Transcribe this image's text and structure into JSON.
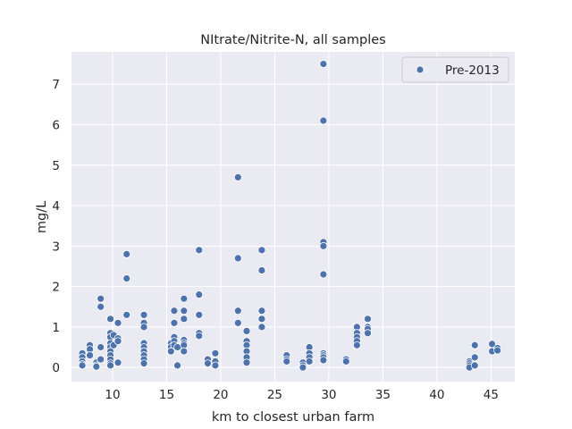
{
  "chart_data": {
    "type": "scatter",
    "title": "NItrate/Nitrite-N, all samples",
    "xlabel": "km to closest urban farm",
    "ylabel": "mg/L",
    "xlim": [
      6.2,
      47.2
    ],
    "ylim": [
      -0.35,
      7.8
    ],
    "xticks": [
      10,
      15,
      20,
      25,
      30,
      35,
      40,
      45
    ],
    "yticks": [
      0,
      1,
      2,
      3,
      4,
      5,
      6,
      7
    ],
    "grid": true,
    "legend_position": "top-right",
    "colors": {
      "background": "#eaeaf2",
      "grid": "#ffffff",
      "marker": "#4c72b0",
      "marker_edge": "#ffffff",
      "text": "#262626"
    },
    "series": [
      {
        "name": "Pre-2013",
        "points": [
          [
            7.2,
            0.35
          ],
          [
            7.2,
            0.25
          ],
          [
            7.2,
            0.15
          ],
          [
            7.2,
            0.08
          ],
          [
            7.2,
            0.05
          ],
          [
            7.9,
            0.55
          ],
          [
            7.9,
            0.45
          ],
          [
            7.9,
            0.3
          ],
          [
            8.5,
            0.12
          ],
          [
            8.5,
            0.05
          ],
          [
            8.5,
            0.02
          ],
          [
            8.9,
            1.7
          ],
          [
            8.9,
            1.5
          ],
          [
            8.9,
            0.5
          ],
          [
            8.9,
            0.2
          ],
          [
            9.8,
            1.2
          ],
          [
            9.8,
            0.85
          ],
          [
            9.8,
            0.75
          ],
          [
            9.8,
            0.6
          ],
          [
            9.8,
            0.5
          ],
          [
            9.8,
            0.4
          ],
          [
            9.8,
            0.3
          ],
          [
            9.8,
            0.2
          ],
          [
            9.8,
            0.1
          ],
          [
            9.8,
            0.05
          ],
          [
            10.1,
            0.8
          ],
          [
            10.1,
            0.55
          ],
          [
            10.5,
            1.1
          ],
          [
            10.5,
            0.72
          ],
          [
            10.5,
            0.65
          ],
          [
            10.5,
            0.12
          ],
          [
            11.3,
            2.8
          ],
          [
            11.3,
            2.2
          ],
          [
            11.3,
            1.3
          ],
          [
            12.9,
            1.3
          ],
          [
            12.9,
            1.1
          ],
          [
            12.9,
            1.0
          ],
          [
            12.9,
            0.6
          ],
          [
            12.9,
            0.5
          ],
          [
            12.9,
            0.4
          ],
          [
            12.9,
            0.3
          ],
          [
            12.9,
            0.2
          ],
          [
            12.9,
            0.1
          ],
          [
            15.4,
            0.6
          ],
          [
            15.4,
            0.5
          ],
          [
            15.4,
            0.4
          ],
          [
            15.7,
            1.4
          ],
          [
            15.7,
            1.1
          ],
          [
            15.7,
            0.75
          ],
          [
            15.7,
            0.65
          ],
          [
            15.7,
            0.55
          ],
          [
            16.0,
            0.5
          ],
          [
            16.0,
            0.05
          ],
          [
            16.6,
            1.7
          ],
          [
            16.6,
            1.4
          ],
          [
            16.6,
            1.2
          ],
          [
            16.6,
            0.68
          ],
          [
            16.6,
            0.6
          ],
          [
            16.6,
            0.55
          ],
          [
            16.6,
            0.4
          ],
          [
            18.0,
            2.9
          ],
          [
            18.0,
            1.8
          ],
          [
            18.0,
            1.3
          ],
          [
            18.0,
            0.85
          ],
          [
            18.0,
            0.78
          ],
          [
            18.8,
            0.2
          ],
          [
            18.8,
            0.1
          ],
          [
            19.5,
            0.35
          ],
          [
            19.5,
            0.15
          ],
          [
            19.5,
            0.05
          ],
          [
            21.6,
            4.7
          ],
          [
            21.6,
            2.7
          ],
          [
            21.6,
            1.4
          ],
          [
            21.6,
            1.1
          ],
          [
            22.4,
            0.9
          ],
          [
            22.4,
            0.65
          ],
          [
            22.4,
            0.55
          ],
          [
            22.4,
            0.4
          ],
          [
            22.4,
            0.25
          ],
          [
            22.4,
            0.12
          ],
          [
            23.8,
            2.9
          ],
          [
            23.8,
            2.4
          ],
          [
            23.8,
            1.4
          ],
          [
            23.8,
            1.2
          ],
          [
            23.8,
            1.0
          ],
          [
            26.1,
            0.3
          ],
          [
            26.1,
            0.2
          ],
          [
            26.1,
            0.15
          ],
          [
            27.6,
            0.12
          ],
          [
            27.6,
            0.05
          ],
          [
            27.6,
            0.0
          ],
          [
            28.2,
            0.5
          ],
          [
            28.2,
            0.35
          ],
          [
            28.2,
            0.25
          ],
          [
            28.2,
            0.15
          ],
          [
            29.5,
            7.5
          ],
          [
            29.5,
            6.1
          ],
          [
            29.5,
            3.1
          ],
          [
            29.5,
            3.0
          ],
          [
            29.5,
            2.3
          ],
          [
            29.5,
            0.35
          ],
          [
            29.5,
            0.3
          ],
          [
            29.5,
            0.25
          ],
          [
            29.5,
            0.18
          ],
          [
            31.6,
            0.2
          ],
          [
            31.6,
            0.15
          ],
          [
            32.6,
            1.0
          ],
          [
            32.6,
            0.85
          ],
          [
            32.6,
            0.75
          ],
          [
            32.6,
            0.65
          ],
          [
            32.6,
            0.55
          ],
          [
            33.6,
            1.2
          ],
          [
            33.6,
            1.0
          ],
          [
            33.6,
            0.95
          ],
          [
            33.6,
            0.85
          ],
          [
            43.0,
            0.15
          ],
          [
            43.0,
            0.1
          ],
          [
            43.0,
            0.05
          ],
          [
            43.0,
            0.0
          ],
          [
            43.5,
            0.55
          ],
          [
            43.5,
            0.25
          ],
          [
            43.5,
            0.05
          ],
          [
            45.1,
            0.58
          ],
          [
            45.1,
            0.4
          ],
          [
            45.6,
            0.48
          ],
          [
            45.6,
            0.42
          ]
        ]
      }
    ]
  }
}
